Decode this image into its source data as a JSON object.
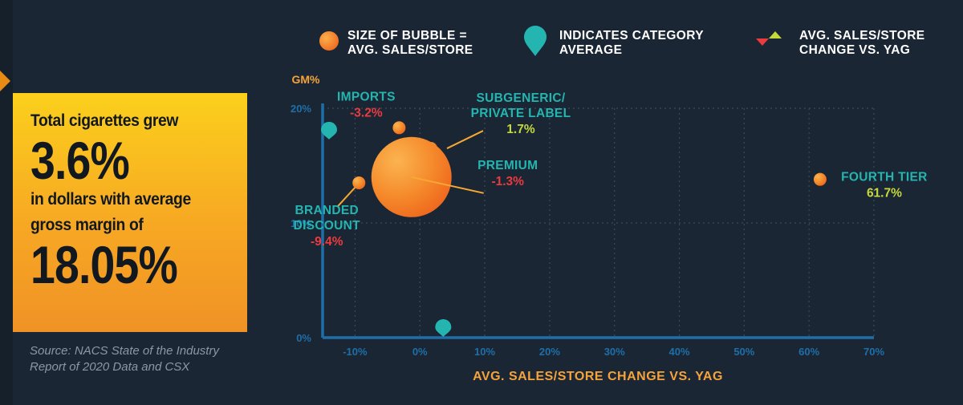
{
  "callout": {
    "line1": "Total cigarettes grew",
    "big1": "3.6%",
    "line2": "in dollars with average",
    "line3": "gross margin of",
    "big2": "18.05%"
  },
  "source": {
    "line1": "Source: NACS State of the Industry",
    "line2": "Report of 2020 Data and CSX"
  },
  "legend": {
    "bubble_size": [
      "SIZE OF BUBBLE =",
      "AVG. SALES/STORE"
    ],
    "category_avg": [
      "INDICATES CATEGORY",
      "AVERAGE"
    ],
    "change": [
      "AVG. SALES/STORE",
      "CHANGE VS. YAG"
    ]
  },
  "colors": {
    "background": "#1b2634",
    "teal": "#24b5b0",
    "orange": "#f58a2b",
    "red": "#ea3b3f",
    "yellowgreen": "#c5d93a",
    "axis_text": "#1e6fa8",
    "axis_title": "#f5a33a"
  },
  "chart_data": {
    "type": "scatter",
    "xlabel": "AVG. SALES/STORE CHANGE VS. YAG",
    "ylabel": "GM%",
    "xlim": [
      -15,
      70
    ],
    "ylim": [
      0,
      20
    ],
    "x_ticks": [
      "-10%",
      "0%",
      "10%",
      "20%",
      "30%",
      "40%",
      "50%",
      "60%",
      "70%"
    ],
    "x_tick_values": [
      -10,
      0,
      10,
      20,
      30,
      40,
      50,
      60,
      70
    ],
    "y_ticks": [
      "0%",
      "10%",
      "20%"
    ],
    "y_tick_values": [
      0,
      10,
      20
    ],
    "grid": true,
    "points": [
      {
        "name_lines": [
          "IMPORTS"
        ],
        "change_label": "-3.2%",
        "change_dir": "down",
        "x": -3.2,
        "y": 18.3,
        "size": 0.5
      },
      {
        "name_lines": [
          "SUBGENERIC/",
          "PRIVATE LABEL"
        ],
        "change_label": "1.7%",
        "change_dir": "up",
        "x": 1.7,
        "y": 16.5,
        "size": 2.3
      },
      {
        "name_lines": [
          "PREMIUM"
        ],
        "change_label": "-1.3%",
        "change_dir": "down",
        "x": -1.3,
        "y": 14.0,
        "size": 100
      },
      {
        "name_lines": [
          "BRANDED",
          "DISCOUNT"
        ],
        "change_label": "-9.4%",
        "change_dir": "down",
        "x": -9.4,
        "y": 13.5,
        "size": 1.3
      },
      {
        "name_lines": [
          "FOURTH TIER"
        ],
        "change_label": "61.7%",
        "change_dir": "up",
        "x": 61.7,
        "y": 13.8,
        "size": 0.7
      }
    ],
    "category_average": {
      "x_marker_x": 3.6,
      "y_marker_y": 18.05
    }
  }
}
